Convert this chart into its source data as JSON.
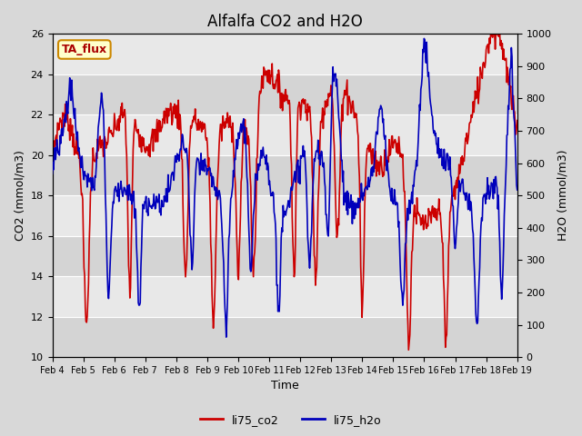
{
  "title": "Alfalfa CO2 and H2O",
  "xlabel": "Time",
  "ylabel_left": "CO2 (mmol/m3)",
  "ylabel_right": "H2O (mmol/m3)",
  "ylim_left": [
    10,
    26
  ],
  "ylim_right": [
    0,
    1000
  ],
  "yticks_left": [
    10,
    12,
    14,
    16,
    18,
    20,
    22,
    24,
    26
  ],
  "yticks_right": [
    0,
    100,
    200,
    300,
    400,
    500,
    600,
    700,
    800,
    900,
    1000
  ],
  "xtick_labels": [
    "Feb 4",
    "Feb 5",
    "Feb 6",
    "Feb 7",
    "Feb 8",
    "Feb 9",
    "Feb 10",
    "Feb 11",
    "Feb 12",
    "Feb 13",
    "Feb 14",
    "Feb 15",
    "Feb 16",
    "Feb 17",
    "Feb 18",
    "Feb 19"
  ],
  "color_co2": "#cc0000",
  "color_h2o": "#0000bb",
  "label_co2": "li75_co2",
  "label_h2o": "li75_h2o",
  "annotation_text": "TA_flux",
  "annotation_bg": "#ffffcc",
  "annotation_border": "#cc8800",
  "fig_bg": "#d8d8d8",
  "plot_bg": "#e8e8e8",
  "band_dark": "#d4d4d4",
  "band_light": "#e8e8e8",
  "title_fontsize": 12,
  "axis_label_fontsize": 9,
  "tick_fontsize": 8,
  "legend_fontsize": 9,
  "linewidth": 1.2
}
